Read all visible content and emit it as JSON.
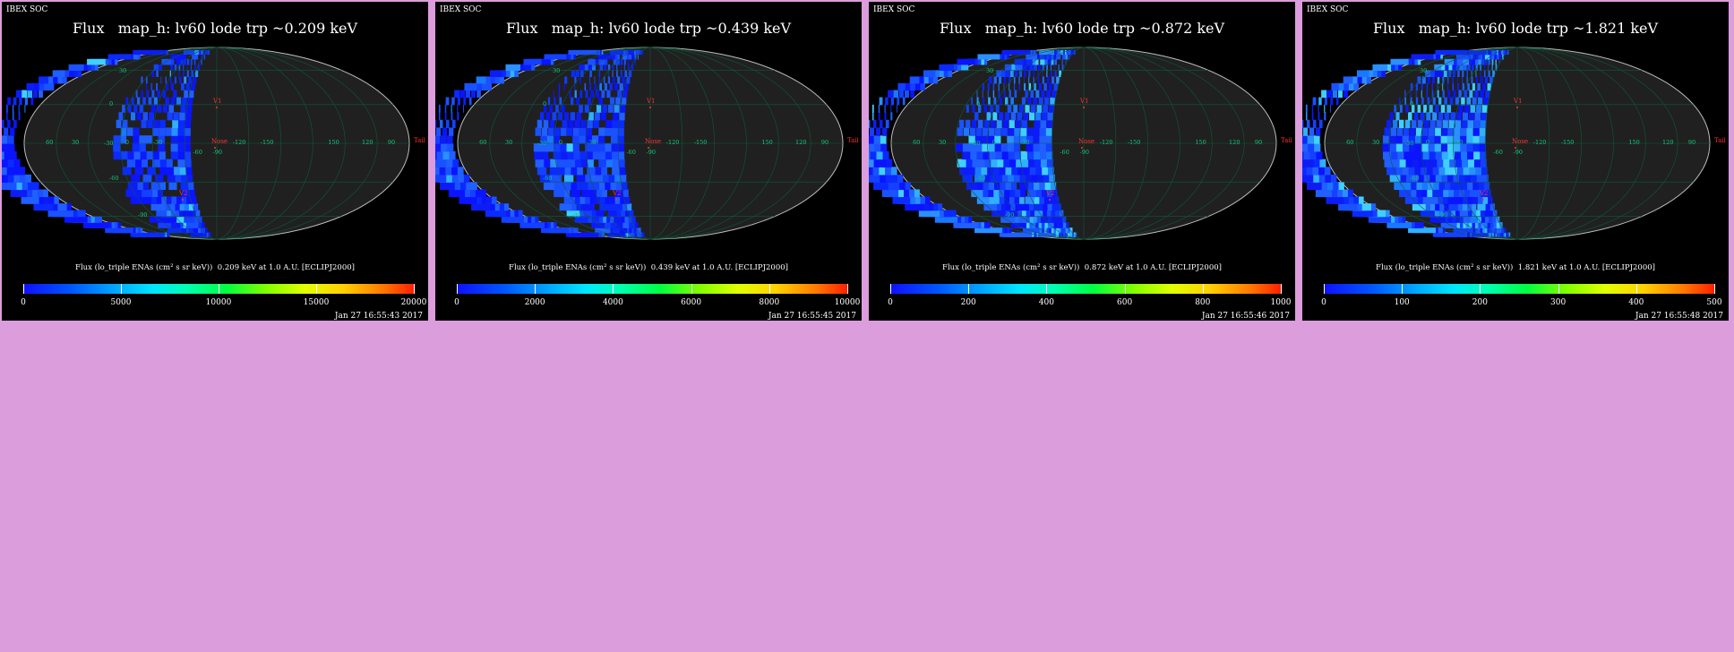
{
  "panels": [
    {
      "source": "IBEX SOC",
      "title": "Flux   map_h: lv60 lode trp ~0.209 keV",
      "colorbar_label": "Flux (lo_triple ENAs (cm² s sr keV))  0.209 keV at 1.0 A.U. [ECLIPJ2000]",
      "ticks": [
        "0",
        "5000",
        "10000",
        "15000",
        "20000"
      ],
      "timestamp": "Jan 27 16:55:43 2017"
    },
    {
      "source": "IBEX SOC",
      "title": "Flux   map_h: lv60 lode trp ~0.439 keV",
      "colorbar_label": "Flux (lo_triple ENAs (cm² s sr keV))  0.439 keV at 1.0 A.U. [ECLIPJ2000]",
      "ticks": [
        "0",
        "2000",
        "4000",
        "6000",
        "8000",
        "10000"
      ],
      "timestamp": "Jan 27 16:55:45 2017"
    },
    {
      "source": "IBEX SOC",
      "title": "Flux   map_h: lv60 lode trp ~0.872 keV",
      "colorbar_label": "Flux (lo_triple ENAs (cm² s sr keV))  0.872 keV at 1.0 A.U. [ECLIPJ2000]",
      "ticks": [
        "0",
        "200",
        "400",
        "600",
        "800",
        "1000"
      ],
      "timestamp": "Jan 27 16:55:46 2017"
    },
    {
      "source": "IBEX SOC",
      "title": "Flux   map_h: lv60 lode trp ~1.821 keV",
      "colorbar_label": "Flux (lo_triple ENAs (cm² s sr keV))  1.821 keV at 1.0 A.U. [ECLIPJ2000]",
      "ticks": [
        "0",
        "100",
        "200",
        "300",
        "400",
        "500"
      ],
      "timestamp": "Jan 27 16:55:48 2017"
    }
  ],
  "map_labels": {
    "longitude": [
      "60",
      "30",
      "0",
      "-30",
      "-60",
      "-90",
      "-120",
      "-150",
      "150",
      "120",
      "90"
    ],
    "latitude": [
      "30",
      "0",
      "-30",
      "-60",
      "-90"
    ],
    "markers": {
      "v1": "V1",
      "v2": "V2",
      "nose": "Nose",
      "tail": "Tail"
    }
  },
  "colors": {
    "page_background": "#dc9ddc",
    "panel_background": "#000000",
    "grid": "#0a5a3a",
    "grid_label": "#13c77a",
    "marker": "#ff3030",
    "flux_low": "#1010ff",
    "flux_high": "#ff2000"
  }
}
